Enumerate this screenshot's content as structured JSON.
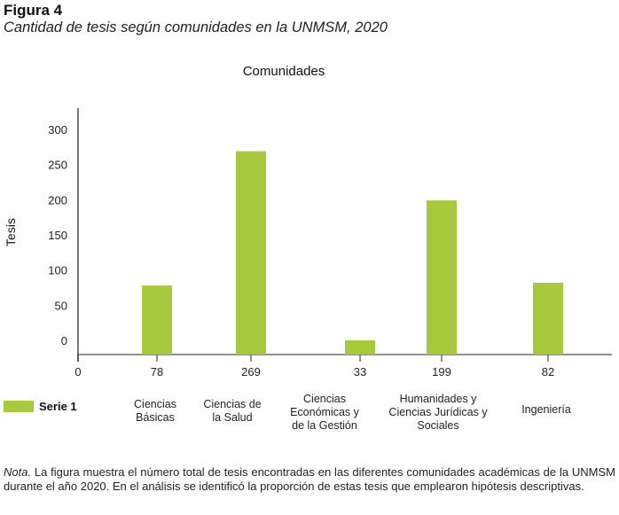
{
  "figure": {
    "label": "Figura 4",
    "caption": "Cantidad de tesis según comunidades en la UNMSM, 2020"
  },
  "note": {
    "prefix": "Nota.",
    "text": " La figura muestra el número total de tesis encontradas en las diferentes comunidades académicas de la UNMSM durante el año 2020. En el análisis se identificó la proporción de estas tesis que emplearon hipótesis descriptivas."
  },
  "colors": {
    "bar": "#a8c83d",
    "axis": "#6b6b6b",
    "text": "#1a1a1a"
  },
  "chart_data": {
    "type": "bar",
    "title": "Comunidades",
    "xlabel": "",
    "ylabel": "Tesis",
    "categories": [
      "Ciencias Básicas",
      "Ciencias de la Salud",
      "Ciencias Económicas y de la Gestión",
      "Humanidades y Ciencias Jurídicas y Sociales",
      "Ingeniería"
    ],
    "category_label_lines": [
      [
        "Ciencias",
        "Básicas"
      ],
      [
        "Ciencias de",
        "la Salud"
      ],
      [
        "Ciencias",
        "Económicas y",
        "de la Gestión"
      ],
      [
        "Humanidades y",
        "Ciencias Jurídicas y",
        "Sociales"
      ],
      [
        "Ingeniería"
      ]
    ],
    "x_tick_labels": [
      "0",
      "78",
      "269",
      "33",
      "199",
      "82"
    ],
    "series": [
      {
        "name": "Serie 1",
        "values": [
          78,
          269,
          33,
          199,
          82
        ]
      }
    ],
    "y_ticks": [
      0,
      50,
      100,
      150,
      200,
      250,
      300
    ],
    "ylim": [
      0,
      300
    ],
    "grid": false,
    "legend": {
      "position": "bottom-left",
      "entries": [
        "Serie 1"
      ]
    }
  }
}
